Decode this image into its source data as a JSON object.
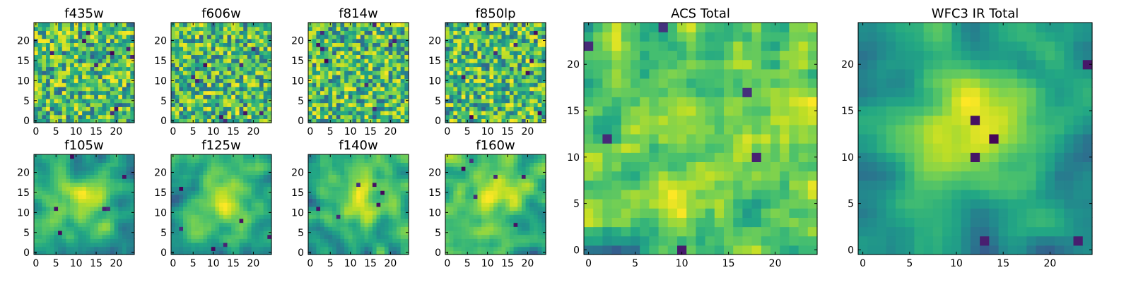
{
  "figure": {
    "description_free": true
  },
  "chart_data": [
    {
      "id": "f435w",
      "type": "heatmap",
      "title": "f435w",
      "grid_size": 25,
      "xticks": [
        "0",
        "5",
        "10",
        "15",
        "20"
      ],
      "yticks": [
        "0",
        "5",
        "10",
        "15",
        "20"
      ],
      "seed": 11,
      "colormap": "viridis",
      "pattern": "noise"
    },
    {
      "id": "f606w",
      "type": "heatmap",
      "title": "f606w",
      "grid_size": 25,
      "xticks": [
        "0",
        "5",
        "10",
        "15",
        "20"
      ],
      "yticks": [
        "0",
        "5",
        "10",
        "15",
        "20"
      ],
      "seed": 23,
      "colormap": "viridis",
      "pattern": "noise"
    },
    {
      "id": "f814w",
      "type": "heatmap",
      "title": "f814w",
      "grid_size": 25,
      "xticks": [
        "0",
        "5",
        "10",
        "15",
        "20"
      ],
      "yticks": [
        "0",
        "5",
        "10",
        "15",
        "20"
      ],
      "seed": 37,
      "colormap": "viridis",
      "pattern": "noise"
    },
    {
      "id": "f850lp",
      "type": "heatmap",
      "title": "f850lp",
      "grid_size": 25,
      "xticks": [
        "0",
        "5",
        "10",
        "15",
        "20"
      ],
      "yticks": [
        "0",
        "5",
        "10",
        "15",
        "20"
      ],
      "seed": 41,
      "colormap": "viridis",
      "pattern": "noise"
    },
    {
      "id": "f105w",
      "type": "heatmap",
      "title": "f105w",
      "grid_size": 25,
      "xticks": [
        "0",
        "5",
        "10",
        "15",
        "20"
      ],
      "yticks": [
        "0",
        "5",
        "10",
        "15",
        "20"
      ],
      "seed": 53,
      "colormap": "viridis",
      "pattern": "blob"
    },
    {
      "id": "f125w",
      "type": "heatmap",
      "title": "f125w",
      "grid_size": 25,
      "xticks": [
        "0",
        "5",
        "10",
        "15",
        "20"
      ],
      "yticks": [
        "0",
        "5",
        "10",
        "15",
        "20"
      ],
      "seed": 67,
      "colormap": "viridis",
      "pattern": "blob"
    },
    {
      "id": "f140w",
      "type": "heatmap",
      "title": "f140w",
      "grid_size": 25,
      "xticks": [
        "0",
        "5",
        "10",
        "15",
        "20"
      ],
      "yticks": [
        "0",
        "5",
        "10",
        "15",
        "20"
      ],
      "seed": 79,
      "colormap": "viridis",
      "pattern": "blob"
    },
    {
      "id": "f160w",
      "type": "heatmap",
      "title": "f160w",
      "grid_size": 25,
      "xticks": [
        "0",
        "5",
        "10",
        "15",
        "20"
      ],
      "yticks": [
        "0",
        "5",
        "10",
        "15",
        "20"
      ],
      "seed": 83,
      "colormap": "viridis",
      "pattern": "blob"
    },
    {
      "id": "acs-total",
      "type": "heatmap",
      "title": "ACS Total",
      "grid_size": 25,
      "xticks": [
        "0",
        "5",
        "10",
        "15",
        "20"
      ],
      "yticks": [
        "0",
        "5",
        "10",
        "15",
        "20"
      ],
      "seed": 97,
      "colormap": "viridis",
      "pattern": "smooth-noise"
    },
    {
      "id": "wfc3-total",
      "type": "heatmap",
      "title": "WFC3 IR Total",
      "grid_size": 25,
      "xticks": [
        "0",
        "5",
        "10",
        "15",
        "20"
      ],
      "yticks": [
        "0",
        "5",
        "10",
        "15",
        "20"
      ],
      "seed": 101,
      "colormap": "viridis",
      "pattern": "central-source"
    }
  ]
}
